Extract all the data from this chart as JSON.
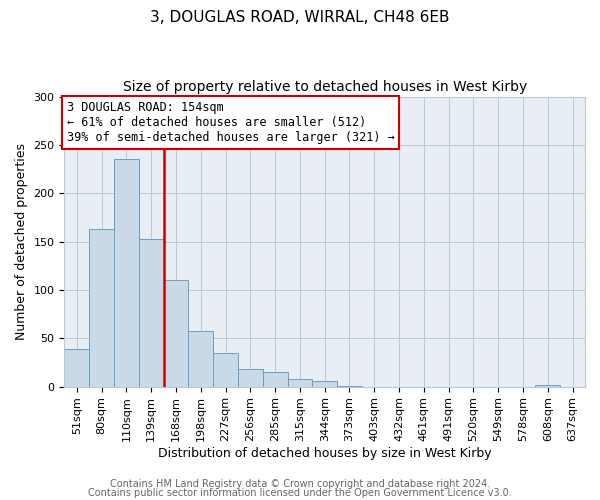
{
  "title": "3, DOUGLAS ROAD, WIRRAL, CH48 6EB",
  "subtitle": "Size of property relative to detached houses in West Kirby",
  "xlabel": "Distribution of detached houses by size in West Kirby",
  "ylabel": "Number of detached properties",
  "bin_labels": [
    "51sqm",
    "80sqm",
    "110sqm",
    "139sqm",
    "168sqm",
    "198sqm",
    "227sqm",
    "256sqm",
    "285sqm",
    "315sqm",
    "344sqm",
    "373sqm",
    "403sqm",
    "432sqm",
    "461sqm",
    "491sqm",
    "520sqm",
    "549sqm",
    "578sqm",
    "608sqm",
    "637sqm"
  ],
  "bar_values": [
    39,
    163,
    235,
    153,
    110,
    57,
    35,
    18,
    15,
    8,
    6,
    1,
    0,
    0,
    0,
    0,
    0,
    0,
    0,
    2,
    0
  ],
  "bar_color": "#c9d9e8",
  "bar_edge_color": "#6a9ec0",
  "vline_color": "#cc0000",
  "annotation_line1": "3 DOUGLAS ROAD: 154sqm",
  "annotation_line2": "← 61% of detached houses are smaller (512)",
  "annotation_line3": "39% of semi-detached houses are larger (321) →",
  "annotation_box_color": "#ffffff",
  "annotation_box_edge_color": "#cc0000",
  "ylim": [
    0,
    300
  ],
  "yticks": [
    0,
    50,
    100,
    150,
    200,
    250,
    300
  ],
  "footer_line1": "Contains HM Land Registry data © Crown copyright and database right 2024.",
  "footer_line2": "Contains public sector information licensed under the Open Government Licence v3.0.",
  "background_color": "#ffffff",
  "plot_background_color": "#e8eef4",
  "grid_color": "#b8c8d8",
  "title_fontsize": 11,
  "subtitle_fontsize": 10,
  "axis_label_fontsize": 9,
  "tick_fontsize": 8,
  "annotation_fontsize": 8.5,
  "footer_fontsize": 7
}
